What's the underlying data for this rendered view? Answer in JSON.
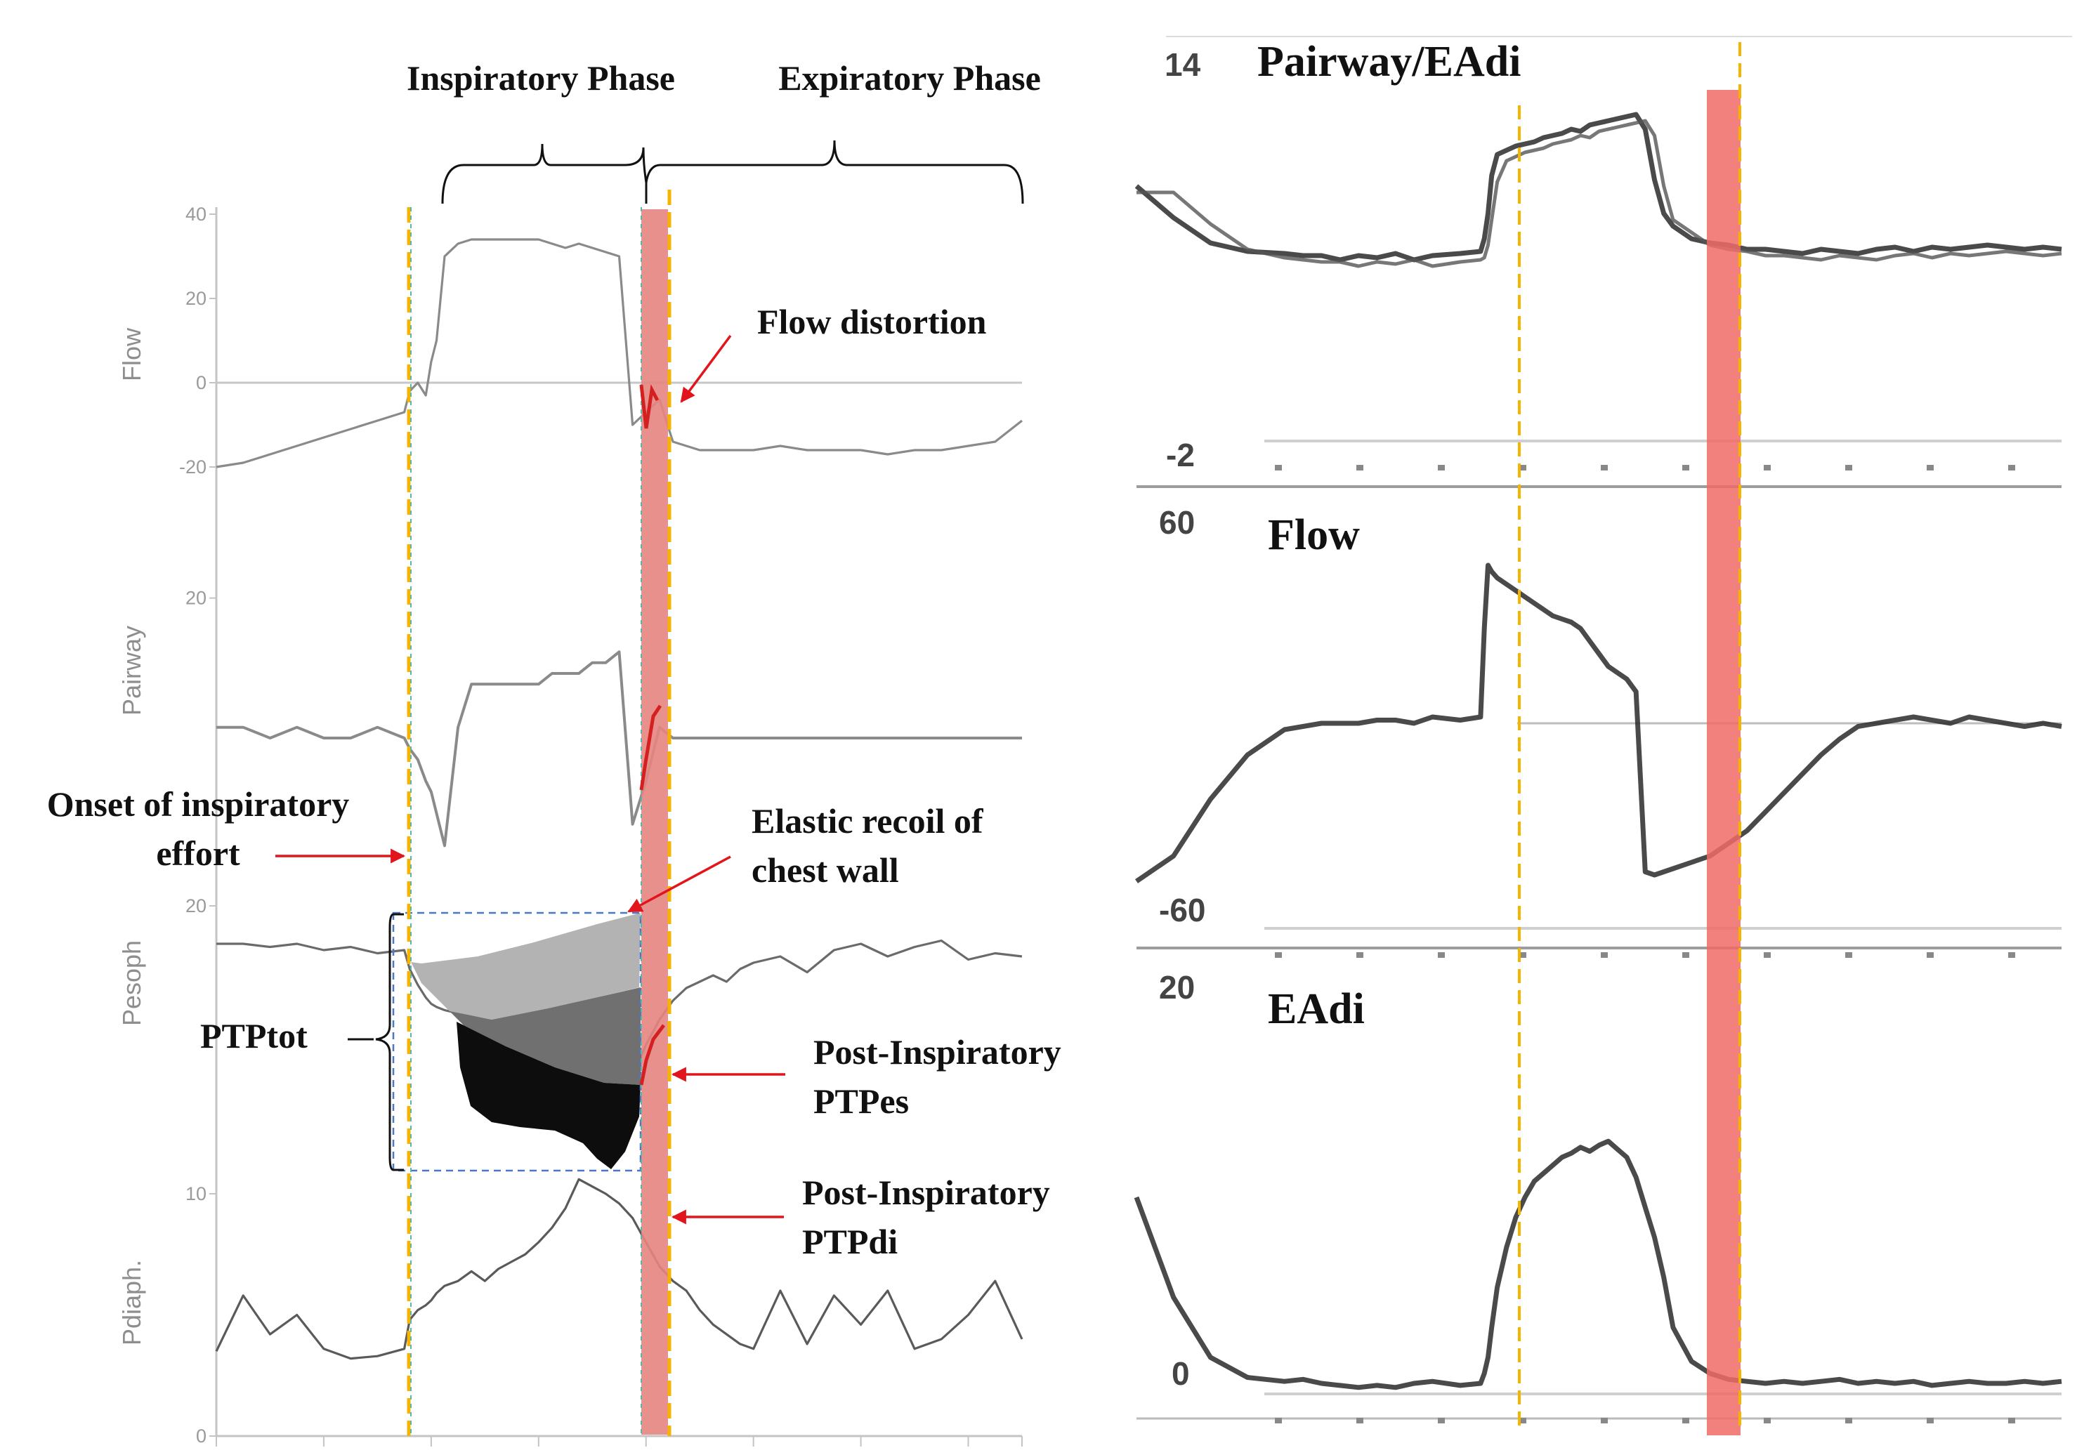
{
  "chart_data": [
    {
      "type": "line",
      "panel": "left",
      "time_x": [
        0,
        10,
        20,
        30,
        40,
        50,
        60,
        70,
        72,
        75,
        78,
        80,
        82,
        85,
        90,
        95,
        100,
        105,
        110,
        115,
        120,
        125,
        130,
        135,
        140,
        145,
        150,
        155,
        160,
        165,
        170,
        175,
        180,
        185,
        190,
        195,
        200,
        210,
        220,
        230,
        240,
        250,
        260,
        270,
        280,
        290,
        300
      ],
      "phase_labels": {
        "inspiratory": "Inspiratory Phase",
        "expiratory": "Expiratory Phase"
      },
      "markers": {
        "onset": 72,
        "end_inspiration": 159,
        "highlight_band": [
          159,
          167
        ],
        "end_dashed": 168
      },
      "subplots": [
        {
          "ylabel": "Flow",
          "ylim": [
            -20,
            40
          ],
          "ticks": [
            {
              "v": 40,
              "label": "40"
            },
            {
              "v": 20,
              "label": "20"
            },
            {
              "v": 0,
              "label": "0"
            },
            {
              "v": -20,
              "label": "-20"
            }
          ],
          "values": [
            -20,
            -19,
            -17,
            -15,
            -13,
            -11,
            -9,
            -7,
            -2,
            0,
            -3,
            5,
            10,
            30,
            33,
            34,
            34,
            34,
            34,
            34,
            34,
            33,
            32,
            33,
            32,
            31,
            30,
            -10,
            -7,
            -4,
            -14,
            -15,
            -16,
            -16,
            -16,
            -16,
            -16,
            -15,
            -16,
            -16,
            -16,
            -17,
            -16,
            -16,
            -15,
            -14,
            -9
          ]
        },
        {
          "ylabel": "Pairway",
          "ylim": [
            -5,
            25
          ],
          "ticks": [
            {
              "v": 20,
              "label": "20"
            }
          ],
          "values": [
            8,
            8,
            7,
            8,
            7,
            7,
            8,
            7,
            6,
            5,
            3,
            2,
            0,
            -3,
            8,
            12,
            12,
            12,
            12,
            12,
            12,
            13,
            13,
            13,
            14,
            14,
            15,
            -1,
            3,
            8,
            7,
            7,
            7,
            7,
            7,
            7,
            7,
            7,
            7,
            7,
            7,
            7,
            7,
            7,
            7,
            7,
            7
          ]
        },
        {
          "ylabel": "Pesoph",
          "ylim": [
            10,
            20
          ],
          "ticks": [
            {
              "v": 20,
              "label": "20"
            }
          ],
          "values": [
            18.8,
            18.8,
            18.7,
            18.8,
            18.6,
            18.7,
            18.5,
            18.6,
            18.0,
            17.5,
            17.1,
            16.9,
            16.8,
            16.7,
            16.6,
            16.5,
            16.4,
            16.3,
            16.2,
            16.1,
            16.1,
            16.0,
            16.0,
            15.9,
            15.9,
            15.8,
            15.8,
            14.6,
            15.6,
            16.4,
            17.0,
            17.4,
            17.6,
            17.8,
            17.6,
            18.0,
            18.2,
            18.4,
            17.9,
            18.6,
            18.8,
            18.4,
            18.7,
            18.9,
            18.3,
            18.5,
            18.4
          ]
        },
        {
          "ylabel": "Pdiaph.",
          "ylim": [
            0,
            10
          ],
          "ticks": [
            {
              "v": 10,
              "label": "10"
            },
            {
              "v": 0,
              "label": "0"
            }
          ],
          "values": [
            3.5,
            5.8,
            4.2,
            5.0,
            3.6,
            3.2,
            3.3,
            3.6,
            4.8,
            5.2,
            5.4,
            5.6,
            5.9,
            6.2,
            6.4,
            6.8,
            6.4,
            6.9,
            7.2,
            7.5,
            8.0,
            8.6,
            9.4,
            10.6,
            10.3,
            10.0,
            9.6,
            9.0,
            8.0,
            7.0,
            6.4,
            6.0,
            5.2,
            4.6,
            4.2,
            3.8,
            3.6,
            6.0,
            3.8,
            5.8,
            4.6,
            6.0,
            3.6,
            4.0,
            5.0,
            6.4,
            4.0
          ]
        }
      ],
      "annotations": {
        "flow_distortion": "Flow distortion",
        "onset_line1": "Onset of inspiratory",
        "onset_line2": "effort",
        "recoil_line1": "Elastic recoil of",
        "recoil_line2": "chest wall",
        "ptptot": "PTPtot",
        "pies_line1": "Post-Inspiratory",
        "pies_line2": "PTPes",
        "pidi_line1": "Post-Inspiratory",
        "pidi_line2": "PTPdi"
      }
    },
    {
      "type": "line",
      "panel": "right",
      "time_x": [
        0,
        20,
        40,
        60,
        80,
        90,
        100,
        110,
        120,
        130,
        140,
        150,
        160,
        175,
        186,
        188,
        190,
        192,
        195,
        200,
        205,
        210,
        215,
        220,
        225,
        230,
        235,
        240,
        245,
        250,
        255,
        260,
        265,
        270,
        275,
        280,
        285,
        290,
        300,
        310,
        320,
        330,
        340,
        350,
        360,
        370,
        380,
        390,
        400,
        410,
        420,
        430,
        440,
        450,
        460,
        470,
        480,
        490,
        500
      ],
      "markers": {
        "dashed_1": 186,
        "band": [
          277,
          292
        ],
        "dashed_2": 293
      },
      "subplots": [
        {
          "title": "Pairway/EAdi",
          "ticks": [
            {
              "label": "14"
            },
            {
              "label": "-2"
            }
          ],
          "ylim": [
            -2,
            14
          ],
          "values": [
            10.5,
            9.0,
            7.8,
            7.4,
            7.3,
            7.2,
            7.2,
            7.0,
            7.2,
            7.1,
            7.3,
            7.0,
            7.2,
            7.3,
            7.4,
            8.0,
            9.2,
            11.0,
            12.0,
            12.2,
            12.4,
            12.5,
            12.6,
            12.8,
            12.9,
            13.0,
            13.2,
            13.1,
            13.4,
            13.5,
            13.6,
            13.7,
            13.8,
            13.9,
            13.2,
            10.8,
            9.2,
            8.6,
            8.0,
            7.8,
            7.7,
            7.5,
            7.5,
            7.4,
            7.3,
            7.5,
            7.4,
            7.3,
            7.5,
            7.6,
            7.4,
            7.6,
            7.5,
            7.6,
            7.7,
            7.6,
            7.5,
            7.6,
            7.5
          ]
        },
        {
          "title": "Flow",
          "ticks": [
            {
              "label": "60"
            },
            {
              "label": "-60"
            }
          ],
          "ylim": [
            -60,
            60
          ],
          "values": [
            -50,
            -42,
            -24,
            -10,
            -2,
            -1,
            0,
            0,
            0,
            1,
            1,
            0,
            2,
            1,
            2,
            30,
            50,
            48,
            46,
            44,
            42,
            40,
            38,
            36,
            34,
            33,
            32,
            30,
            26,
            22,
            18,
            16,
            14,
            10,
            -47,
            -48,
            -47,
            -46,
            -44,
            -42,
            -38,
            -34,
            -28,
            -22,
            -16,
            -10,
            -5,
            -1,
            0,
            1,
            2,
            1,
            0,
            2,
            1,
            0,
            -1,
            0,
            -1
          ]
        },
        {
          "title": "EAdi",
          "ticks": [
            {
              "label": "20"
            },
            {
              "label": "0"
            }
          ],
          "ylim": [
            0,
            20
          ],
          "values": [
            10.0,
            5.0,
            2.0,
            1.0,
            0.8,
            0.9,
            0.7,
            0.6,
            0.5,
            0.6,
            0.5,
            0.7,
            0.8,
            0.6,
            0.7,
            1.2,
            2.0,
            3.5,
            5.5,
            7.5,
            9.0,
            10.0,
            10.8,
            11.2,
            11.6,
            12.0,
            12.2,
            12.5,
            12.3,
            12.6,
            12.8,
            12.4,
            12.0,
            11.0,
            9.5,
            8.0,
            6.0,
            3.5,
            1.8,
            1.2,
            0.9,
            0.8,
            0.7,
            0.8,
            0.7,
            0.8,
            0.9,
            0.7,
            0.8,
            0.7,
            0.8,
            0.6,
            0.7,
            0.8,
            0.7,
            0.7,
            0.8,
            0.7,
            0.8
          ]
        }
      ]
    }
  ]
}
